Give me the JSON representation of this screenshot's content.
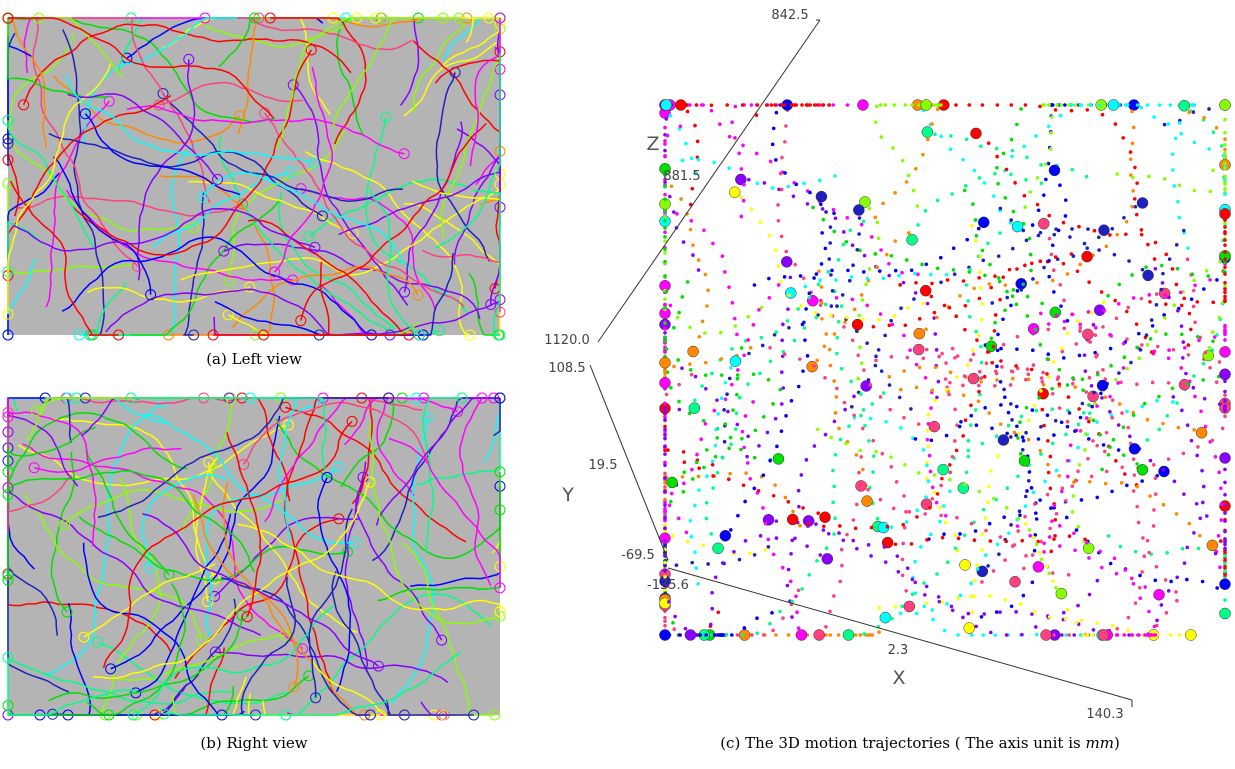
{
  "panels": [
    {
      "caption": "(a) Left view"
    },
    {
      "caption": "(b) Right view"
    },
    {
      "caption_parts": [
        "(c) The 3D motion trajectories ( The axis unit is ",
        "mm",
        ")"
      ],
      "axes": {
        "z": {
          "label": "Z",
          "ticks": [
            "842.5",
            "881.5",
            "1120.0"
          ]
        },
        "y": {
          "label": "Y",
          "ticks": [
            "108.5",
            "19.5",
            "-69.5"
          ]
        },
        "x": {
          "label": "X",
          "ticks": [
            "-135.6",
            "2.3",
            "140.3"
          ]
        }
      }
    }
  ]
}
